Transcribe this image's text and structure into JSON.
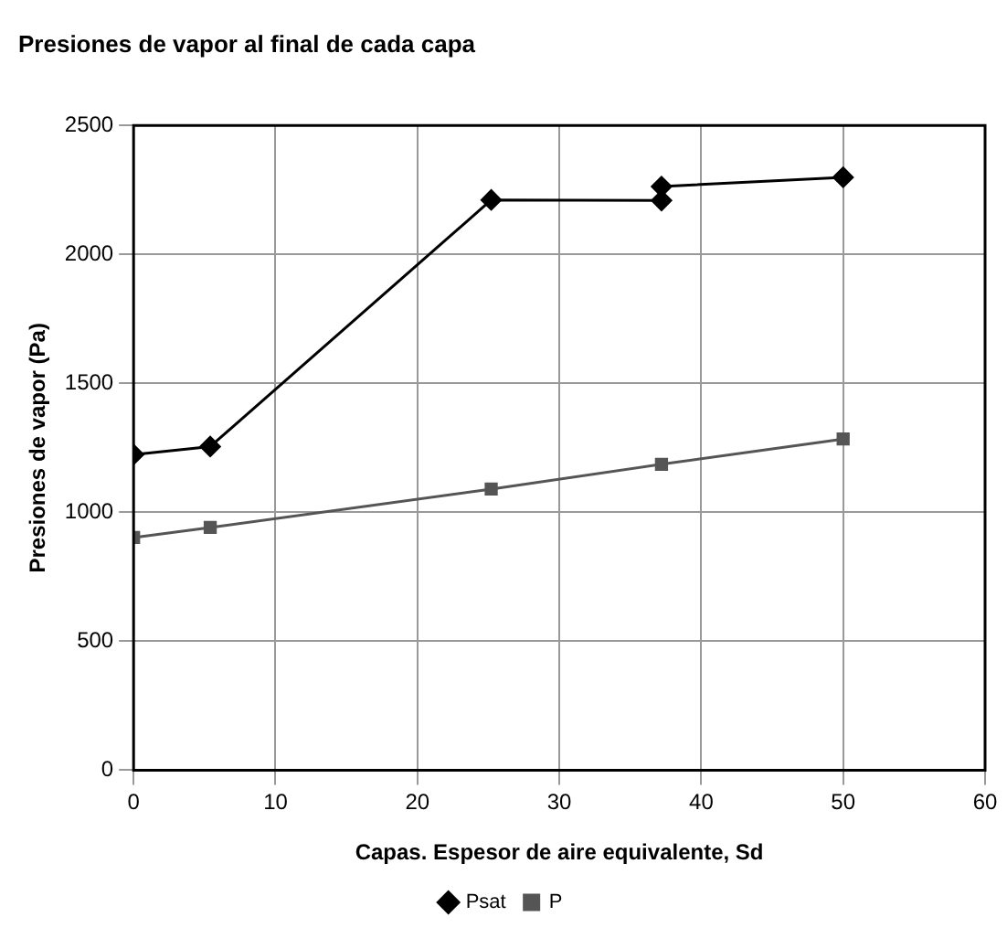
{
  "chart_data": {
    "type": "line",
    "title": "Presiones de vapor al final de cada capa",
    "xlabel": "Capas. Espesor de aire equivalente, Sd",
    "ylabel": "Presiones de vapor (Pa)",
    "xlim": [
      0,
      60
    ],
    "xticks": [
      0,
      10,
      20,
      30,
      40,
      50,
      60
    ],
    "ylim": [
      0,
      2500
    ],
    "yticks": [
      0,
      500,
      1000,
      1500,
      2000,
      2500
    ],
    "grid": true,
    "legend": "bottom",
    "line_style": "solid",
    "series": [
      {
        "name": "Psat",
        "color": "#000000",
        "marker": "diamond",
        "x": [
          0,
          5.4,
          25.2,
          37.2,
          37.2,
          50
        ],
        "values": [
          1224,
          1255,
          2211,
          2209,
          2263,
          2299
        ]
      },
      {
        "name": "P",
        "color": "#555555",
        "marker": "square",
        "x": [
          0,
          5.4,
          25.2,
          37.2,
          50
        ],
        "values": [
          902,
          941,
          1090,
          1186,
          1284
        ]
      }
    ]
  }
}
